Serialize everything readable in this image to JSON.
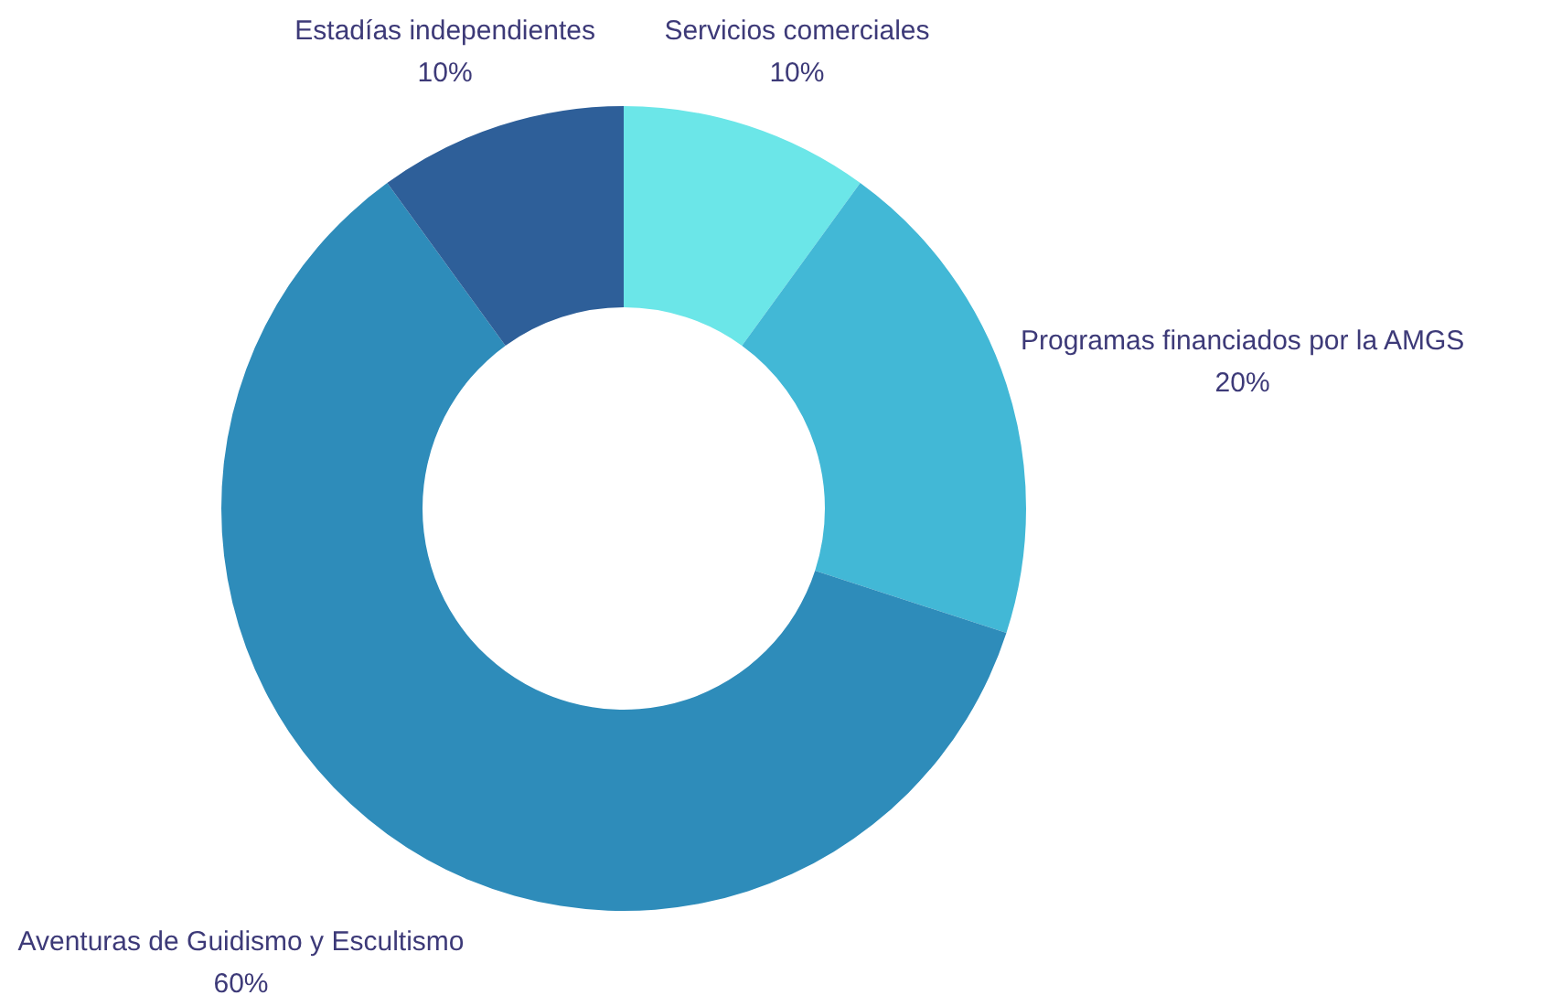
{
  "chart_data": {
    "type": "donut",
    "categories": [
      "Servicios comerciales",
      "Programas financiados por la AMGS",
      "Aventuras de Guidismo y Escultismo",
      "Estadías independientes"
    ],
    "values": [
      10,
      20,
      60,
      10
    ],
    "colors": [
      "#6be6e8",
      "#42b8d6",
      "#2e8cba",
      "#2e5f99"
    ],
    "value_labels": [
      "10%",
      "20%",
      "60%",
      "10%"
    ],
    "legend": false
  }
}
